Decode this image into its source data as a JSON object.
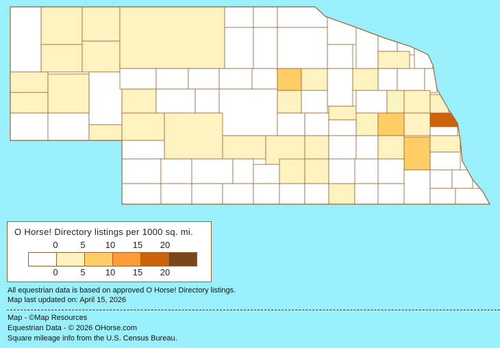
{
  "map": {
    "region": "Nebraska counties",
    "colors": {
      "outline": "#a0622d",
      "level0": "#ffffff",
      "level1": "#fdf3c0",
      "level2": "#fecd64",
      "level3": "#fd9b34",
      "level4": "#cc6309",
      "level5": "#7a461c"
    }
  },
  "legend": {
    "title": "O Horse! Directory listings per 1000 sq. mi.",
    "top_ticks": [
      "0",
      "5",
      "10",
      "15",
      "20"
    ],
    "bottom_ticks": [
      "0",
      "5",
      "10",
      "15",
      "20"
    ],
    "swatches": [
      "#ffffff",
      "#fdf3c0",
      "#fecd64",
      "#fd9b34",
      "#cc6309",
      "#7a461c"
    ]
  },
  "notes": {
    "data_basis": "All equestrian data is based on approved O Horse! Directory listings.",
    "updated": "Map last updated on: April 15, 2026"
  },
  "credits": {
    "map": "Map - ©Map Resources",
    "data": "Equestrian Data - © 2026 OHorse.com",
    "census": "Square mileage info from the U.S. Census Bureau."
  }
}
